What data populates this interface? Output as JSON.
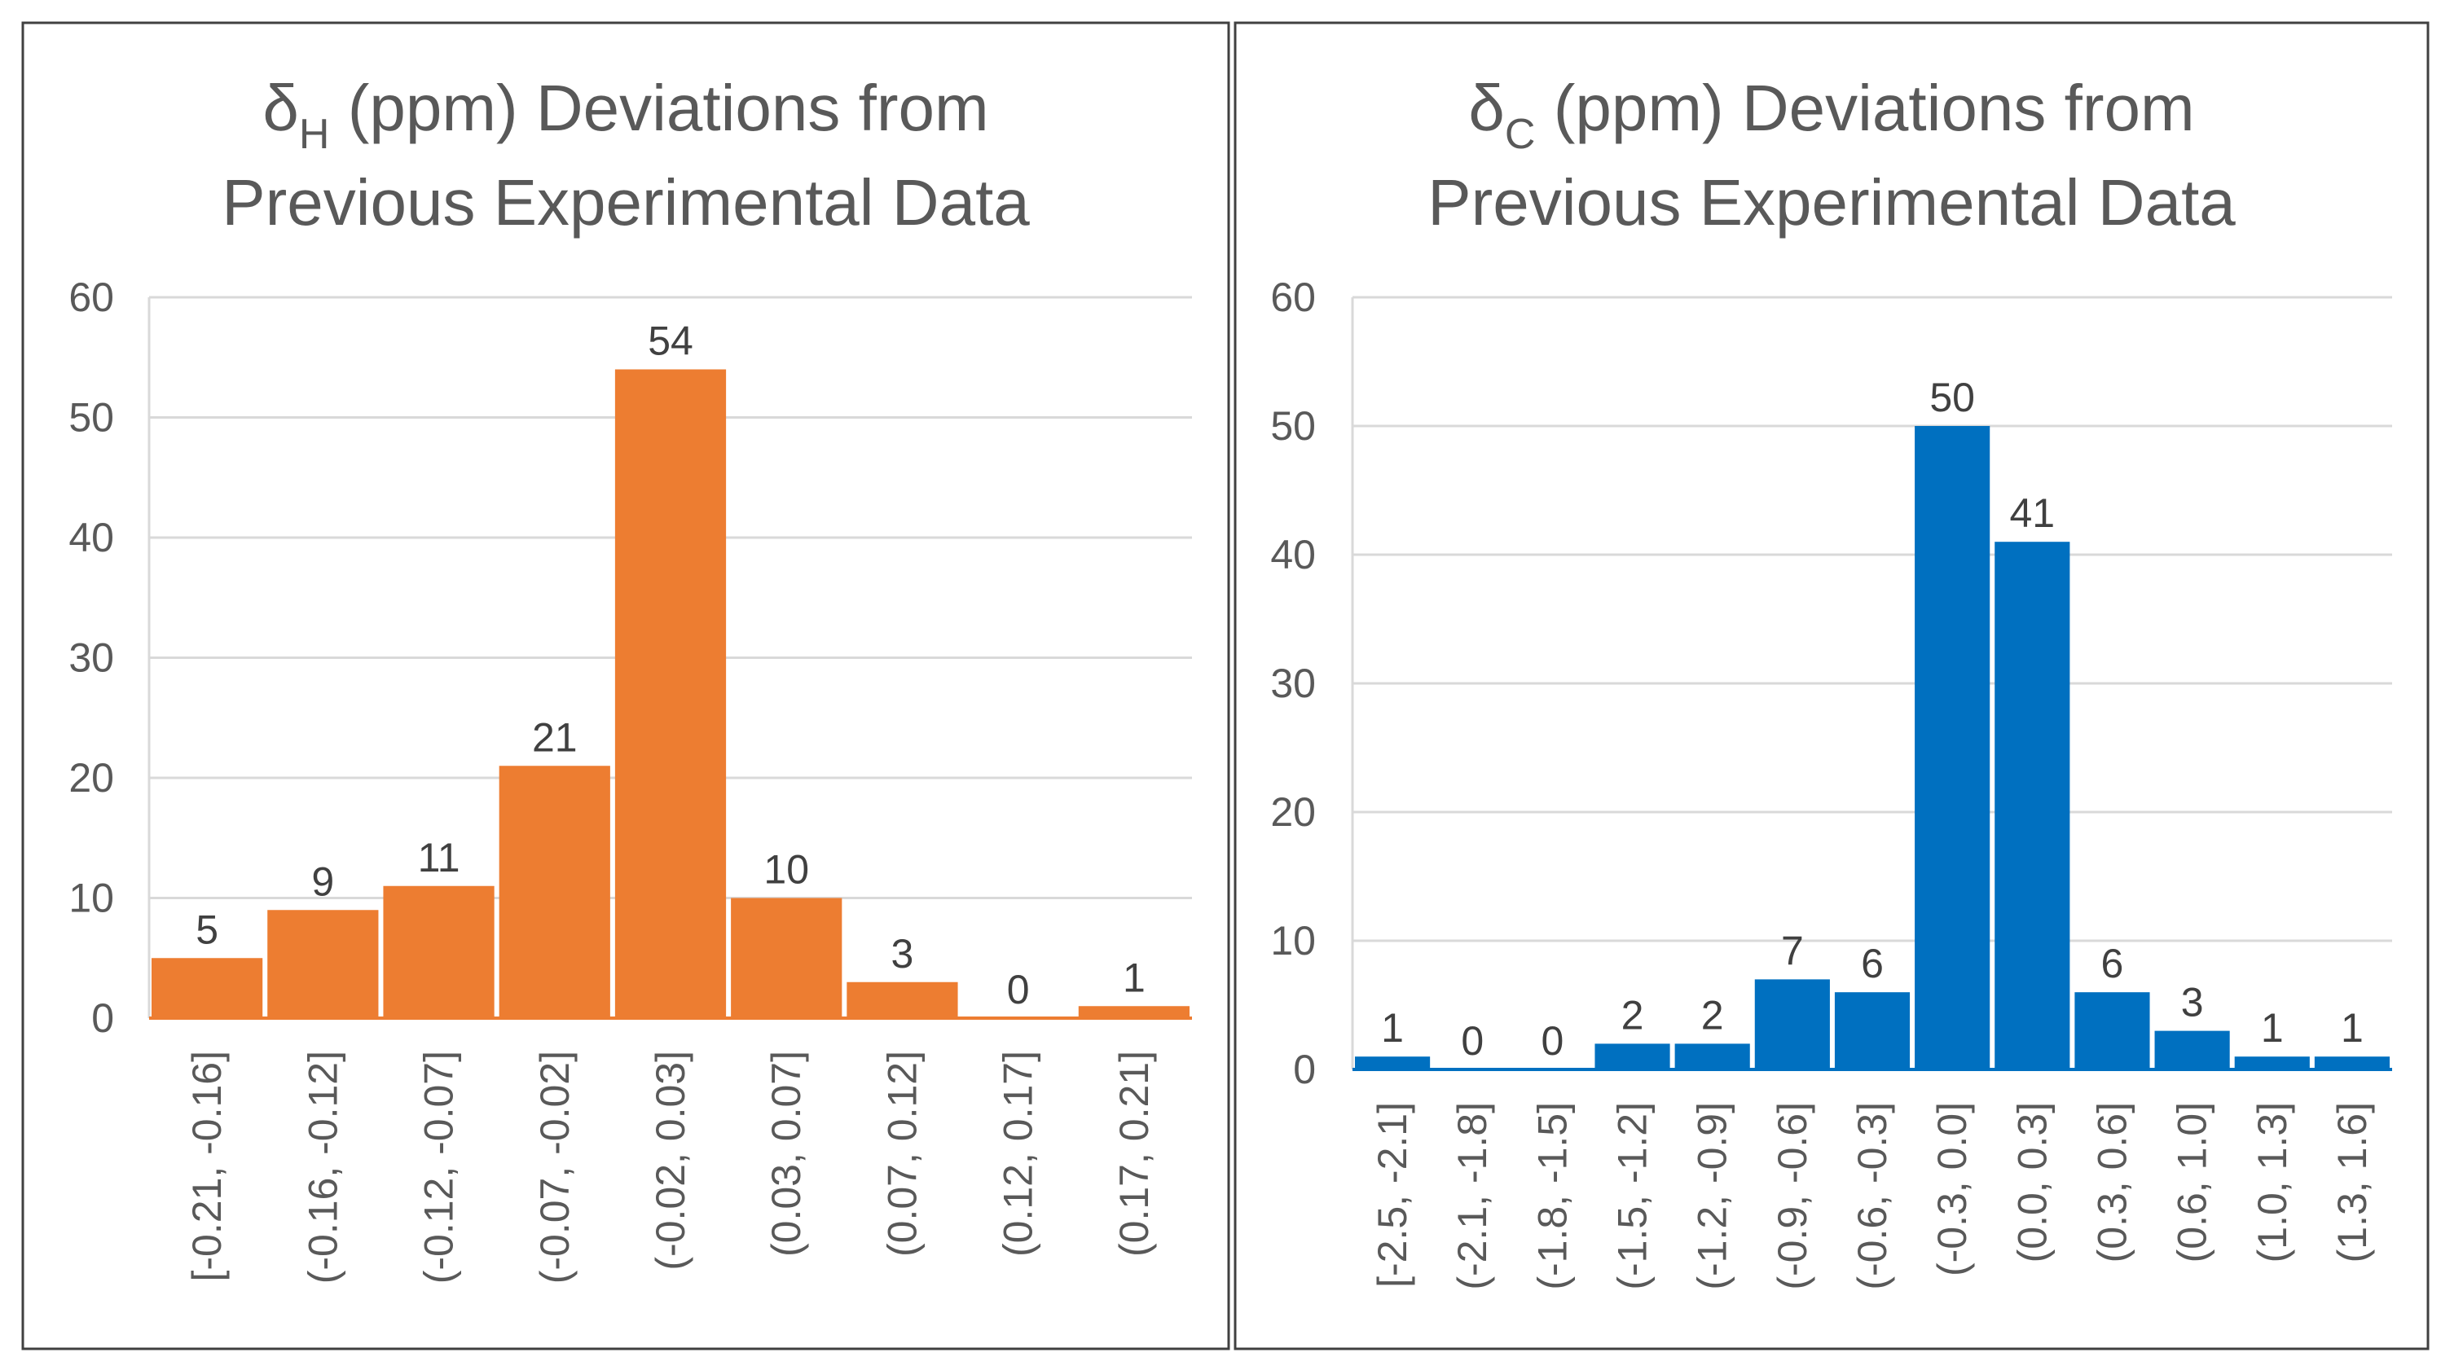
{
  "chart_data": [
    {
      "type": "bar",
      "title_symbol": "δ",
      "title_subscript": "H",
      "title_line1_rest": " (ppm) Deviations from",
      "title_line2": "Previous Experimental Data",
      "categories": [
        "[-0.21, -0.16]",
        "(-0.16, -0.12]",
        "(-0.12, -0.07]",
        "(-0.07, -0.02]",
        "(-0.02, 0.03]",
        "(0.03, 0.07]",
        "(0.07, 0.12]",
        "(0.12, 0.17]",
        "(0.17, 0.21]"
      ],
      "values": [
        5,
        9,
        11,
        21,
        54,
        10,
        3,
        0,
        1
      ],
      "ylim": [
        0,
        60
      ],
      "yticks": [
        0,
        10,
        20,
        30,
        40,
        50,
        60
      ],
      "grid": true,
      "color": "#ED7D31",
      "xlabel": "",
      "ylabel": ""
    },
    {
      "type": "bar",
      "title_symbol": "δ",
      "title_subscript": "C",
      "title_line1_rest": " (ppm) Deviations from",
      "title_line2": "Previous Experimental Data",
      "categories": [
        "[-2.5, -2.1]",
        "(-2.1, -1.8]",
        "(-1.8, -1.5]",
        "(-1.5, -1.2]",
        "(-1.2, -0.9]",
        "(-0.9, -0.6]",
        "(-0.6, -0.3]",
        "(-0.3, 0.0]",
        "(0.0, 0.3]",
        "(0.3, 0.6]",
        "(0.6, 1.0]",
        "(1.0, 1.3]",
        "(1.3, 1.6]"
      ],
      "values": [
        1,
        0,
        0,
        2,
        2,
        7,
        6,
        50,
        41,
        6,
        3,
        1,
        1
      ],
      "ylim": [
        0,
        60
      ],
      "yticks": [
        0,
        10,
        20,
        30,
        40,
        50,
        60
      ],
      "grid": true,
      "color": "#0070C0",
      "xlabel": "",
      "ylabel": ""
    }
  ]
}
